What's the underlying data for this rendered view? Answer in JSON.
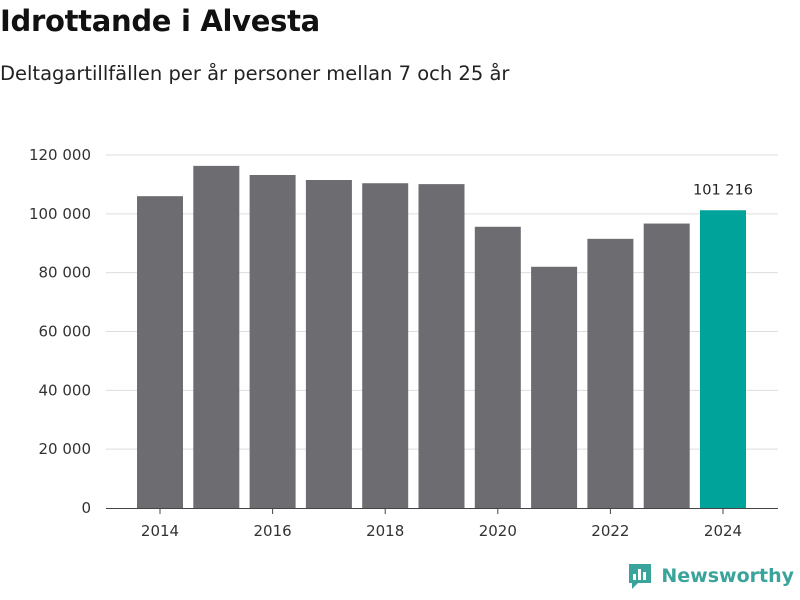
{
  "header": {
    "title": "Idrottande i Alvesta",
    "subtitle": "Deltagartillfällen per år personer mellan 7 och 25 år"
  },
  "brand": {
    "name": "Newsworthy",
    "icon": "newsworthy-logo-icon",
    "color": "#3aa39b"
  },
  "chart_data": {
    "type": "bar",
    "title": "Idrottande i Alvesta",
    "subtitle": "Deltagartillfällen per år personer mellan 7 och 25 år",
    "xlabel": "",
    "ylabel": "",
    "categories": [
      2014,
      2015,
      2016,
      2017,
      2018,
      2019,
      2020,
      2021,
      2022,
      2023,
      2024
    ],
    "values": [
      106000,
      116300,
      113200,
      111500,
      110400,
      110100,
      95600,
      82000,
      91500,
      96700,
      101216
    ],
    "ylim": [
      0,
      120000
    ],
    "yticks": [
      0,
      20000,
      40000,
      60000,
      80000,
      100000,
      120000
    ],
    "ytick_labels": [
      "0",
      "20 000",
      "40 000",
      "60 000",
      "80 000",
      "100 000",
      "120 000"
    ],
    "xticks": [
      2014,
      2016,
      2018,
      2020,
      2022,
      2024
    ],
    "xtick_labels": [
      "2014",
      "2016",
      "2018",
      "2020",
      "2022",
      "2024"
    ],
    "grid": true,
    "legend": false,
    "colors": {
      "default": "#6d6c71",
      "highlight": "#00a39a"
    },
    "highlight_category": 2024,
    "annotations": [
      {
        "category": 2024,
        "text": "101 216"
      }
    ]
  }
}
